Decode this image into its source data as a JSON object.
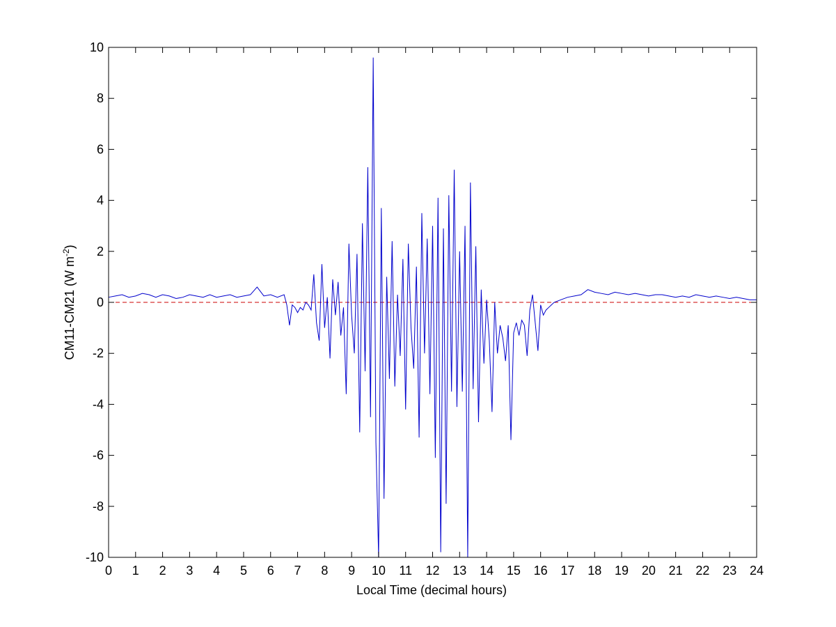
{
  "chart_data": {
    "type": "line",
    "xlabel": "Local Time (decimal hours)",
    "ylabel": [
      "CM11-CM21 (W m",
      "-2",
      ")"
    ],
    "xlim": [
      0,
      24
    ],
    "xticks": [
      0,
      1,
      2,
      3,
      4,
      5,
      6,
      7,
      8,
      9,
      10,
      11,
      12,
      13,
      14,
      15,
      16,
      17,
      18,
      19,
      20,
      21,
      22,
      23,
      24
    ],
    "ylim": [
      -10,
      10
    ],
    "yticks": [
      -10,
      -8,
      -6,
      -4,
      -2,
      0,
      2,
      4,
      6,
      8,
      10
    ],
    "reference_line": {
      "y": 0,
      "color": "#cc0000",
      "dashed": true
    },
    "x": [
      0,
      0.25,
      0.5,
      0.75,
      1,
      1.25,
      1.5,
      1.75,
      2,
      2.25,
      2.5,
      2.75,
      3,
      3.25,
      3.5,
      3.75,
      4,
      4.25,
      4.5,
      4.75,
      5,
      5.25,
      5.5,
      5.75,
      6,
      6.25,
      6.5,
      6.6,
      6.7,
      6.8,
      6.9,
      7.0,
      7.1,
      7.2,
      7.3,
      7.4,
      7.5,
      7.6,
      7.7,
      7.8,
      7.9,
      8.0,
      8.1,
      8.2,
      8.3,
      8.4,
      8.5,
      8.6,
      8.7,
      8.8,
      8.9,
      9.0,
      9.1,
      9.2,
      9.3,
      9.4,
      9.5,
      9.6,
      9.7,
      9.8,
      9.9,
      10.0,
      10.1,
      10.2,
      10.3,
      10.4,
      10.5,
      10.6,
      10.7,
      10.8,
      10.9,
      11.0,
      11.1,
      11.2,
      11.3,
      11.4,
      11.5,
      11.6,
      11.7,
      11.8,
      11.9,
      12.0,
      12.1,
      12.2,
      12.3,
      12.4,
      12.5,
      12.6,
      12.7,
      12.8,
      12.9,
      13.0,
      13.1,
      13.2,
      13.3,
      13.4,
      13.5,
      13.6,
      13.7,
      13.8,
      13.9,
      14.0,
      14.1,
      14.2,
      14.3,
      14.4,
      14.5,
      14.6,
      14.7,
      14.8,
      14.9,
      15.0,
      15.1,
      15.2,
      15.3,
      15.4,
      15.5,
      15.6,
      15.7,
      15.8,
      15.9,
      16.0,
      16.1,
      16.2,
      16.3,
      16.4,
      16.5,
      16.75,
      17,
      17.25,
      17.5,
      17.75,
      18,
      18.25,
      18.5,
      18.75,
      19,
      19.25,
      19.5,
      19.75,
      20,
      20.25,
      20.5,
      20.75,
      21,
      21.25,
      21.5,
      21.75,
      22,
      22.25,
      22.5,
      22.75,
      23,
      23.25,
      23.5,
      23.75,
      24
    ],
    "series": [
      {
        "color": "#0000cc",
        "values": [
          0.2,
          0.25,
          0.3,
          0.2,
          0.25,
          0.35,
          0.3,
          0.2,
          0.3,
          0.25,
          0.15,
          0.2,
          0.3,
          0.25,
          0.2,
          0.3,
          0.2,
          0.25,
          0.3,
          0.2,
          0.25,
          0.3,
          0.6,
          0.25,
          0.3,
          0.2,
          0.3,
          -0.1,
          -0.9,
          -0.1,
          -0.2,
          -0.4,
          -0.2,
          -0.3,
          0,
          -0.1,
          -0.3,
          1.1,
          -0.8,
          -1.5,
          1.5,
          -1.0,
          0.2,
          -2.2,
          0.9,
          -0.5,
          0.8,
          -1.3,
          -0.2,
          -3.6,
          2.3,
          -0.5,
          -2.0,
          1.9,
          -5.1,
          3.1,
          -2.7,
          5.3,
          -4.5,
          9.6,
          -5.5,
          -10,
          3.7,
          -7.7,
          1.0,
          -3.0,
          2.4,
          -3.3,
          0.3,
          -2.1,
          1.7,
          -4.2,
          2.3,
          -1.0,
          -2.6,
          1.4,
          -5.3,
          3.5,
          -2.0,
          2.5,
          -3.6,
          3.0,
          -6.1,
          4.1,
          -9.8,
          2.9,
          -7.9,
          4.2,
          -3.5,
          5.2,
          -4.1,
          2.0,
          -3.5,
          3.0,
          -10,
          4.7,
          -3.4,
          2.2,
          -4.7,
          0.5,
          -2.4,
          0.1,
          -1.5,
          -4.3,
          0.0,
          -2.0,
          -0.9,
          -1.4,
          -2.3,
          -0.9,
          -5.4,
          -1.2,
          -0.8,
          -1.3,
          -0.7,
          -0.9,
          -2.1,
          -0.3,
          0.3,
          -0.8,
          -1.9,
          -0.1,
          -0.5,
          -0.3,
          -0.2,
          -0.1,
          0.0,
          0.1,
          0.2,
          0.25,
          0.3,
          0.5,
          0.4,
          0.35,
          0.3,
          0.4,
          0.35,
          0.3,
          0.35,
          0.3,
          0.25,
          0.3,
          0.3,
          0.25,
          0.2,
          0.25,
          0.2,
          0.3,
          0.25,
          0.2,
          0.25,
          0.2,
          0.15,
          0.2,
          0.15,
          0.1,
          0.1
        ]
      }
    ]
  }
}
